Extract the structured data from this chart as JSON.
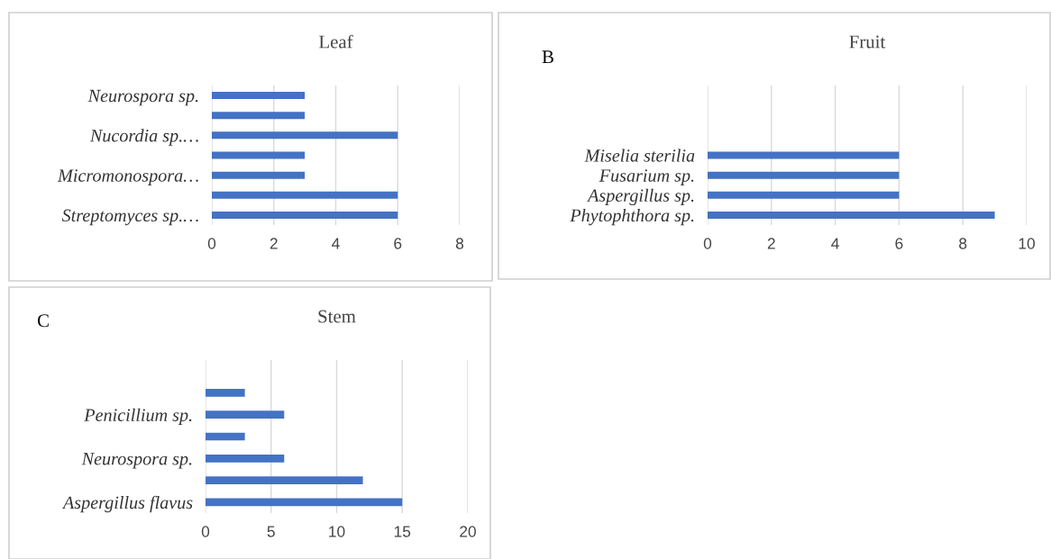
{
  "chart_data": [
    {
      "type": "bar",
      "orientation": "horizontal",
      "title": "Leaf",
      "categories": [
        "Neurospora sp.",
        null,
        "Nucordia sp.…",
        null,
        "Micromonospora…",
        null,
        "Streptomyces sp.…"
      ],
      "values": [
        3,
        3,
        6,
        3,
        3,
        6,
        6
      ],
      "color": "#4472c4",
      "xlim": [
        0,
        8
      ],
      "xticks": [
        0,
        2,
        4,
        6,
        8
      ],
      "grid": "x"
    },
    {
      "type": "bar",
      "orientation": "horizontal",
      "title": "Fruit",
      "annotations": [
        "B"
      ],
      "categories": [
        null,
        null,
        null,
        "Miselia sterilia",
        "Fusarium sp.",
        "Aspergillus sp.",
        "Phytophthora sp."
      ],
      "values": [
        null,
        null,
        null,
        6,
        6,
        6,
        9
      ],
      "color": "#4472c4",
      "xlim": [
        0,
        10
      ],
      "xticks": [
        0,
        2,
        4,
        6,
        8,
        10
      ],
      "grid": "x"
    },
    {
      "type": "bar",
      "orientation": "horizontal",
      "title": "Stem",
      "annotations": [
        "C"
      ],
      "categories": [
        null,
        null,
        "Penicillium sp.",
        null,
        "Neurospora sp.",
        null,
        "Aspergillus flavus"
      ],
      "values": [
        null,
        3,
        6,
        3,
        6,
        12,
        15
      ],
      "color": "#4472c4",
      "xlim": [
        0,
        20
      ],
      "xticks": [
        0,
        5,
        10,
        15,
        20
      ],
      "grid": "x"
    }
  ]
}
